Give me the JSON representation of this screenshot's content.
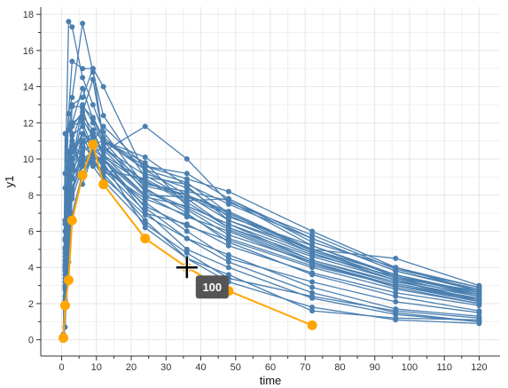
{
  "chart_data": {
    "type": "line",
    "xlabel": "time",
    "ylabel": "y1",
    "xlim": [
      -6,
      126
    ],
    "ylim": [
      -0.9,
      18.4
    ],
    "xticks": [
      0,
      10,
      20,
      30,
      40,
      50,
      60,
      70,
      80,
      90,
      100,
      110,
      120
    ],
    "yticks": [
      0,
      2,
      4,
      6,
      8,
      10,
      12,
      14,
      16,
      18
    ],
    "grid": true,
    "colors": {
      "series": "#4a7fb0",
      "highlight": "#ffa500",
      "tooltip": "#555555"
    },
    "series": [
      {
        "x": [
          0.5,
          1,
          2,
          3,
          6,
          9,
          12,
          24,
          36,
          48,
          72,
          96,
          120
        ],
        "y": [
          0.1,
          6.6,
          12.5,
          15.4,
          15.0,
          15.0,
          14.0,
          9.2,
          8.4,
          6.8,
          5.2,
          3.5,
          2.6
        ]
      },
      {
        "x": [
          0.5,
          1,
          2,
          3,
          6,
          9,
          12,
          24,
          36,
          48,
          72,
          96,
          120
        ],
        "y": [
          0.1,
          8.4,
          17.6,
          17.3,
          14.5,
          13.0,
          11.5,
          8.5,
          8.0,
          7.1,
          5.0,
          3.6,
          2.5
        ]
      },
      {
        "x": [
          0.5,
          1,
          2,
          3,
          6,
          9,
          12,
          24,
          36,
          48,
          72,
          96,
          120
        ],
        "y": [
          0.1,
          9.2,
          12.5,
          13.4,
          17.5,
          14.8,
          12.4,
          9.0,
          8.6,
          7.5,
          5.6,
          3.8,
          2.8
        ]
      },
      {
        "x": [
          0.5,
          1,
          2,
          3,
          6,
          9,
          12,
          24,
          36,
          48,
          72,
          96,
          120
        ],
        "y": [
          0.3,
          11.4,
          11.6,
          13.0,
          13.4,
          15.0,
          11.0,
          9.8,
          7.4,
          6.4,
          4.4,
          3.2,
          2.4
        ]
      },
      {
        "x": [
          0.5,
          1,
          2,
          3,
          6,
          9,
          12,
          24,
          36,
          48,
          72,
          96,
          120
        ],
        "y": [
          0.1,
          4.6,
          8.0,
          11.8,
          12.6,
          14.4,
          11.0,
          9.4,
          8.7,
          7.0,
          4.9,
          3.4,
          2.7
        ]
      },
      {
        "x": [
          0.5,
          1,
          2,
          3,
          6,
          9,
          12,
          24,
          36,
          48,
          72,
          96,
          120
        ],
        "y": [
          0.1,
          6.6,
          8.2,
          12.0,
          13.9,
          12.2,
          11.0,
          10.1,
          8.5,
          6.6,
          5.0,
          4.5,
          3.0
        ]
      },
      {
        "x": [
          0.5,
          1,
          2,
          3,
          6,
          9,
          12,
          24,
          36,
          48,
          72,
          96,
          120
        ],
        "y": [
          0.1,
          2.8,
          7.8,
          9.7,
          12.2,
          11.2,
          10.2,
          8.8,
          7.6,
          6.2,
          4.6,
          3.3,
          2.1
        ]
      },
      {
        "x": [
          0.5,
          1,
          2,
          3,
          6,
          9,
          12,
          24,
          36,
          48,
          72,
          96,
          120
        ],
        "y": [
          0.1,
          0.7,
          6.3,
          8.0,
          11.0,
          11.4,
          10.4,
          11.8,
          10.0,
          7.6,
          5.8,
          3.9,
          2.9
        ]
      },
      {
        "x": [
          0.5,
          1,
          2,
          3,
          6,
          9,
          12,
          24,
          36,
          48,
          72,
          96,
          120
        ],
        "y": [
          0.1,
          2.8,
          6.6,
          9.7,
          13.0,
          12.0,
          10.8,
          8.2,
          7.2,
          5.8,
          4.3,
          3.0,
          2.2
        ]
      },
      {
        "x": [
          0.5,
          1,
          2,
          3,
          6,
          9,
          12,
          24,
          36,
          48,
          72,
          96,
          120
        ],
        "y": [
          0.1,
          5.0,
          8.7,
          11.0,
          12.8,
          11.0,
          11.8,
          9.6,
          8.9,
          8.2,
          6.0,
          4.0,
          2.7
        ]
      },
      {
        "x": [
          0.5,
          1,
          2,
          3,
          6,
          9,
          12,
          24,
          36,
          48,
          72,
          96,
          120
        ],
        "y": [
          0.1,
          6.0,
          9.5,
          11.9,
          12.0,
          10.6,
          10.0,
          8.0,
          7.9,
          6.9,
          4.8,
          3.3,
          2.2
        ]
      },
      {
        "x": [
          0.5,
          1,
          2,
          3,
          6,
          9,
          12,
          24,
          36,
          48,
          72,
          96,
          120
        ],
        "y": [
          0.1,
          6.6,
          9.9,
          11.0,
          10.0,
          10.4,
          9.6,
          7.4,
          6.3,
          5.5,
          4.0,
          2.8,
          2.0
        ]
      },
      {
        "x": [
          0.5,
          1,
          2,
          3,
          6,
          9,
          12,
          24,
          36,
          48,
          72,
          96,
          120
        ],
        "y": [
          0.1,
          3.9,
          7.2,
          8.9,
          11.4,
          9.9,
          9.0,
          6.9,
          5.6,
          4.3,
          2.6,
          1.5,
          1.0
        ]
      },
      {
        "x": [
          0.5,
          1,
          2,
          3,
          6,
          9,
          12,
          24,
          36,
          48,
          72,
          96,
          120
        ],
        "y": [
          0.1,
          5.5,
          9.5,
          10.7,
          9.6,
          10.0,
          10.1,
          8.6,
          8.2,
          7.7,
          5.2,
          3.6,
          2.6
        ]
      },
      {
        "x": [
          0.5,
          1,
          2,
          3,
          6,
          9,
          12,
          24,
          36,
          48,
          72,
          96,
          120
        ],
        "y": [
          0.1,
          4.4,
          8.2,
          10.0,
          11.4,
          10.8,
          10.6,
          9.1,
          7.8,
          6.2,
          4.4,
          3.1,
          2.3
        ]
      },
      {
        "x": [
          0.5,
          1,
          2,
          3,
          6,
          9,
          12,
          24,
          36,
          48,
          72,
          96,
          120
        ],
        "y": [
          0.1,
          3.0,
          6.0,
          9.7,
          8.6,
          10.3,
          9.8,
          6.2,
          4.5,
          3.6,
          1.6,
          1.2,
          1.1
        ]
      },
      {
        "x": [
          0.5,
          1,
          2,
          3,
          6,
          9,
          12,
          24,
          36,
          48,
          72,
          96,
          120
        ],
        "y": [
          0.1,
          2.9,
          5.0,
          7.8,
          9.6,
          10.6,
          9.4,
          7.1,
          5.0,
          4.0,
          2.3,
          1.4,
          1.0
        ]
      },
      {
        "x": [
          0.5,
          1,
          2,
          3,
          6,
          9,
          12,
          24,
          36,
          48,
          72,
          96,
          120
        ],
        "y": [
          0.1,
          1.9,
          4.3,
          7.0,
          9.2,
          10.0,
          9.2,
          6.6,
          4.5,
          3.2,
          1.8,
          1.1,
          0.9
        ]
      },
      {
        "x": [
          0.5,
          1,
          2,
          3,
          6,
          9,
          12,
          24,
          36,
          48,
          72,
          96,
          120
        ],
        "y": [
          0.1,
          3.6,
          7.0,
          9.4,
          10.4,
          10.8,
          11.0,
          8.4,
          7.0,
          5.4,
          3.6,
          2.4,
          1.6
        ]
      },
      {
        "x": [
          0.5,
          1,
          2,
          3,
          6,
          9,
          12,
          24,
          36,
          48,
          72,
          96,
          120
        ],
        "y": [
          0.1,
          4.1,
          7.7,
          10.4,
          11.4,
          11.0,
          9.9,
          7.9,
          7.4,
          6.4,
          4.7,
          3.5,
          2.5
        ]
      },
      {
        "x": [
          0.5,
          1,
          2,
          3,
          6,
          9,
          12,
          24,
          36,
          48,
          72,
          96,
          120
        ],
        "y": [
          0.1,
          2.4,
          6.2,
          8.4,
          10.1,
          9.7,
          9.4,
          8.9,
          7.7,
          7.8,
          5.4,
          4.0,
          2.9
        ]
      },
      {
        "x": [
          0.5,
          1,
          2,
          3,
          6,
          9,
          12,
          24,
          36,
          48,
          72,
          96,
          120
        ],
        "y": [
          0.1,
          5.1,
          8.8,
          12.0,
          12.4,
          11.6,
          10.2,
          8.0,
          6.8,
          6.0,
          4.2,
          3.0,
          2.1
        ]
      },
      {
        "x": [
          0.5,
          1,
          2,
          3,
          6,
          9,
          12,
          24,
          36,
          48,
          72,
          96,
          120
        ],
        "y": [
          0.1,
          4.0,
          8.8,
          11.3,
          11.8,
          10.2,
          10.0,
          7.3,
          5.6,
          4.7,
          2.9,
          1.7,
          1.3
        ]
      },
      {
        "x": [
          0.5,
          1,
          2,
          3,
          6,
          9,
          12,
          24,
          36,
          48,
          72,
          96,
          120
        ],
        "y": [
          0.1,
          3.4,
          6.8,
          9.0,
          10.2,
          9.8,
          9.4,
          7.8,
          6.9,
          5.6,
          4.1,
          3.0,
          2.3
        ]
      },
      {
        "x": [
          0.5,
          1,
          2,
          3,
          6,
          9,
          12,
          24,
          36,
          48,
          72,
          96,
          120
        ],
        "y": [
          0.1,
          6.4,
          10.4,
          11.4,
          9.0,
          10.4,
          10.6,
          8.7,
          8.0,
          7.0,
          5.0,
          3.4,
          2.4
        ]
      },
      {
        "x": [
          0.5,
          1,
          2,
          3,
          6,
          9,
          12,
          24,
          36,
          48,
          72,
          96,
          120
        ],
        "y": [
          0.1,
          2.2,
          5.6,
          8.2,
          9.8,
          10.2,
          9.6,
          7.6,
          6.0,
          4.5,
          3.2,
          2.1,
          1.5
        ]
      },
      {
        "x": [
          0.5,
          1,
          2,
          3,
          6,
          9,
          12,
          24,
          36,
          48,
          72,
          96,
          120
        ],
        "y": [
          0.1,
          4.2,
          7.5,
          10.0,
          10.6,
          11.6,
          11.0,
          9.6,
          9.2,
          7.8,
          5.6,
          3.8,
          2.7
        ]
      },
      {
        "x": [
          0.5,
          1,
          2,
          3,
          6,
          9,
          12,
          24,
          36,
          48,
          72,
          96,
          120
        ],
        "y": [
          0.1,
          3.8,
          7.0,
          9.6,
          11.0,
          10.9,
          10.5,
          8.3,
          7.3,
          6.1,
          4.3,
          2.9,
          2.0
        ]
      },
      {
        "x": [
          0.5,
          1,
          2,
          3,
          6,
          9,
          12,
          24,
          36,
          48,
          72,
          96,
          120
        ],
        "y": [
          0.1,
          5.6,
          9.1,
          12.9,
          12.9,
          12.3,
          11.2,
          9.4,
          8.0,
          6.6,
          4.8,
          3.3,
          2.5
        ]
      },
      {
        "x": [
          0.5,
          1,
          2,
          3,
          6,
          9,
          12,
          24,
          36,
          48,
          72,
          96,
          120
        ],
        "y": [
          0.1,
          3.2,
          6.6,
          9.0,
          10.0,
          9.6,
          8.8,
          6.4,
          4.8,
          3.4,
          2.4,
          1.6,
          1.2
        ]
      },
      {
        "x": [
          0.5,
          1,
          2,
          3,
          6,
          9,
          12,
          24,
          36,
          48,
          72,
          96,
          120
        ],
        "y": [
          0.1,
          4.8,
          8.4,
          10.8,
          10.9,
          10.0,
          10.0,
          7.0,
          6.4,
          5.2,
          3.7,
          2.6,
          1.9
        ]
      }
    ],
    "highlight_series": {
      "x": [
        0.5,
        1,
        2,
        3,
        6,
        9,
        12,
        24,
        36,
        48,
        72
      ],
      "y": [
        0.1,
        1.9,
        3.3,
        6.6,
        9.1,
        10.8,
        8.6,
        5.6,
        4.0,
        2.7,
        0.8
      ]
    },
    "cursor": {
      "x": 36,
      "y": 4.0
    },
    "tooltip": {
      "text": "100"
    }
  }
}
